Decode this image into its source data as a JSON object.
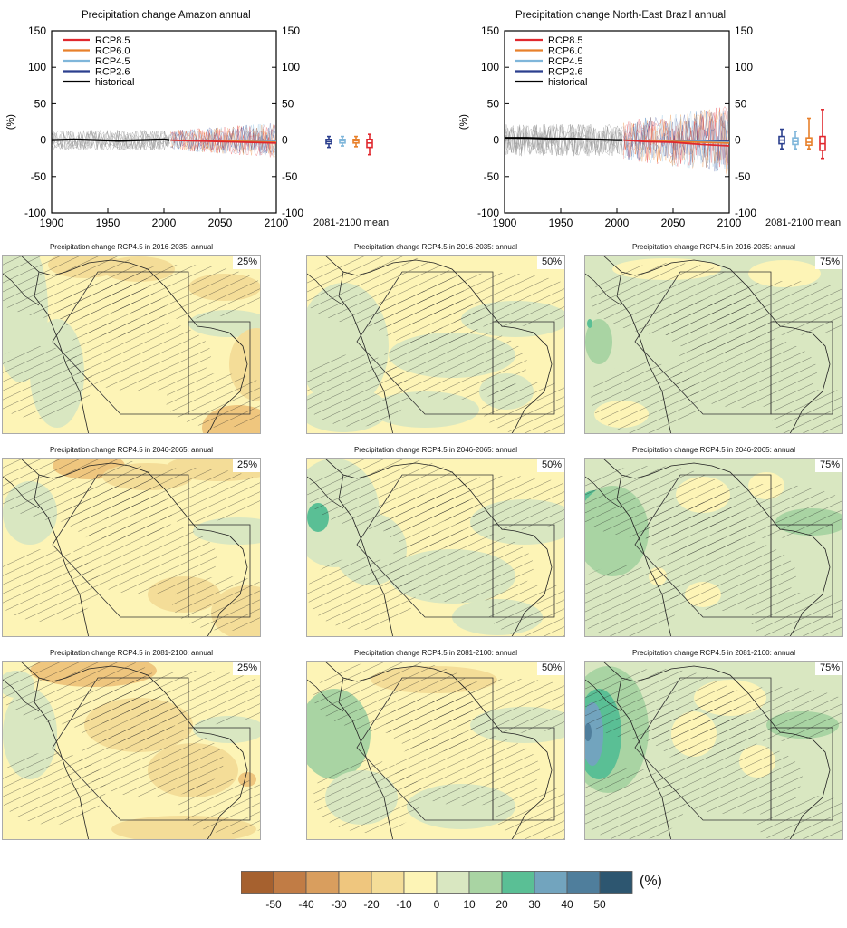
{
  "timeseries": [
    {
      "title": "Precipitation change Amazon annual",
      "ylabel": "(%)",
      "yticks": [
        "150",
        "100",
        "50",
        "0",
        "-50",
        "-100"
      ],
      "xticks": [
        "1900",
        "1950",
        "2000",
        "2050",
        "2100"
      ],
      "mean_label": "2081-2100 mean",
      "legend": [
        "RCP8.5",
        "RCP6.0",
        "RCP4.5",
        "RCP2.6",
        "historical"
      ]
    },
    {
      "title": "Precipitation change North-East Brazil annual",
      "ylabel": "(%)",
      "yticks": [
        "150",
        "100",
        "50",
        "0",
        "-50",
        "-100"
      ],
      "xticks": [
        "1900",
        "1950",
        "2000",
        "2050",
        "2100"
      ],
      "mean_label": "2081-2100 mean",
      "legend": [
        "RCP8.5",
        "RCP6.0",
        "RCP4.5",
        "RCP2.6",
        "historical"
      ]
    }
  ],
  "maps": {
    "titles": [
      "Precipitation change RCP4.5 in 2016-2035: annual",
      "Precipitation change RCP4.5 in 2046-2065: annual",
      "Precipitation change RCP4.5 in 2081-2100: annual"
    ],
    "percentiles": [
      "25%",
      "50%",
      "75%"
    ]
  },
  "colorbar": {
    "labels": [
      "-50",
      "-40",
      "-30",
      "-20",
      "-10",
      "0",
      "10",
      "20",
      "30",
      "40",
      "50"
    ],
    "unit": "(%)",
    "colors": [
      "#a6612f",
      "#c17c45",
      "#d99e5e",
      "#efc67e",
      "#f4dd98",
      "#fdf4b6",
      "#d9e7c1",
      "#a9d4a3",
      "#5abf95",
      "#72a4be",
      "#4f7e9c",
      "#2d5670"
    ]
  },
  "chart_data": [
    {
      "type": "line",
      "title": "Precipitation change Amazon annual",
      "ylabel": "(%)",
      "xlim": [
        1900,
        2100
      ],
      "ylim": [
        -100,
        150
      ],
      "series": [
        {
          "name": "historical",
          "x": [
            1900,
            1920,
            1940,
            1960,
            1980,
            2000,
            2005
          ],
          "values": [
            0,
            1,
            0,
            -1,
            0,
            1,
            0
          ]
        },
        {
          "name": "RCP2.6",
          "x": [
            2006,
            2025,
            2050,
            2075,
            2100
          ],
          "values": [
            0,
            -1,
            -1,
            -2,
            -2
          ]
        },
        {
          "name": "RCP4.5",
          "x": [
            2006,
            2025,
            2050,
            2075,
            2100
          ],
          "values": [
            0,
            -1,
            -1,
            -2,
            -2
          ]
        },
        {
          "name": "RCP6.0",
          "x": [
            2006,
            2025,
            2050,
            2075,
            2100
          ],
          "values": [
            0,
            -1,
            -1,
            -2,
            -3
          ]
        },
        {
          "name": "RCP8.5",
          "x": [
            2006,
            2025,
            2050,
            2075,
            2100
          ],
          "values": [
            0,
            -1,
            -2,
            -3,
            -4
          ]
        }
      ],
      "mean_2081_2100": [
        {
          "name": "RCP2.6",
          "median": -2,
          "q25": -5,
          "q75": 1,
          "min": -10,
          "max": 5
        },
        {
          "name": "RCP4.5",
          "median": -1,
          "q25": -4,
          "q75": 1,
          "min": -8,
          "max": 5
        },
        {
          "name": "RCP6.0",
          "median": -1,
          "q25": -4,
          "q75": 1,
          "min": -9,
          "max": 5
        },
        {
          "name": "RCP8.5",
          "median": -4,
          "q25": -10,
          "q75": 1,
          "min": -20,
          "max": 8
        }
      ]
    },
    {
      "type": "line",
      "title": "Precipitation change North-East Brazil annual",
      "ylabel": "(%)",
      "xlim": [
        1900,
        2100
      ],
      "ylim": [
        -100,
        150
      ],
      "series": [
        {
          "name": "historical",
          "x": [
            1900,
            1920,
            1940,
            1960,
            1980,
            2000,
            2005
          ],
          "values": [
            3,
            3,
            2,
            2,
            1,
            0,
            0
          ]
        },
        {
          "name": "RCP2.6",
          "x": [
            2006,
            2025,
            2050,
            2075,
            2100
          ],
          "values": [
            0,
            -1,
            -1,
            -1,
            -2
          ]
        },
        {
          "name": "RCP4.5",
          "x": [
            2006,
            2025,
            2050,
            2075,
            2100
          ],
          "values": [
            0,
            -1,
            -2,
            -2,
            -3
          ]
        },
        {
          "name": "RCP6.0",
          "x": [
            2006,
            2025,
            2050,
            2075,
            2100
          ],
          "values": [
            0,
            -1,
            -2,
            -3,
            -4
          ]
        },
        {
          "name": "RCP8.5",
          "x": [
            2006,
            2025,
            2050,
            2075,
            2100
          ],
          "values": [
            0,
            -2,
            -3,
            -6,
            -8
          ]
        }
      ],
      "mean_2081_2100": [
        {
          "name": "RCP2.6",
          "median": 0,
          "q25": -5,
          "q75": 5,
          "min": -12,
          "max": 15
        },
        {
          "name": "RCP4.5",
          "median": -2,
          "q25": -6,
          "q75": 3,
          "min": -12,
          "max": 12
        },
        {
          "name": "RCP6.0",
          "median": -3,
          "q25": -7,
          "q75": 3,
          "min": -12,
          "max": 30
        },
        {
          "name": "RCP8.5",
          "median": -5,
          "q25": -14,
          "q75": 5,
          "min": -25,
          "max": 42
        }
      ]
    }
  ]
}
